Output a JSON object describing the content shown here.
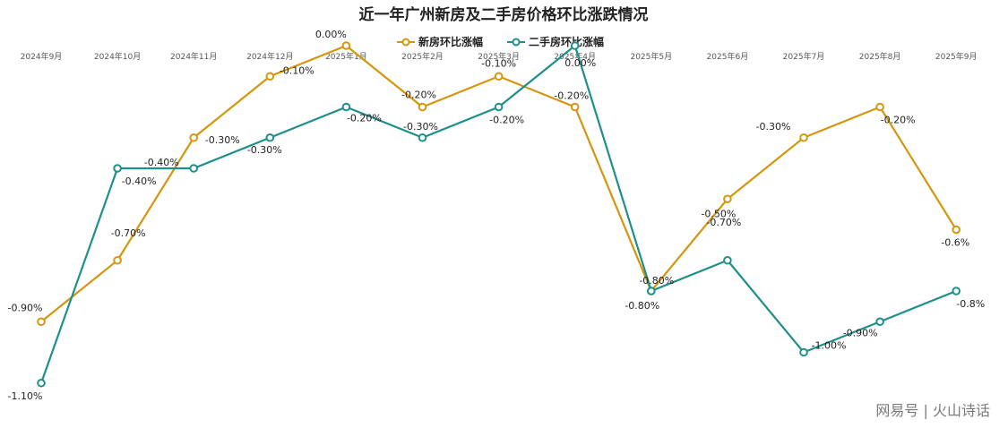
{
  "chart_data": {
    "type": "line",
    "title": "近一年广州新房及二手房价格环比涨跌情况",
    "categories": [
      "2024年9月",
      "2024年10月",
      "2024年11月",
      "2024年12月",
      "2025年1月",
      "2025年2月",
      "2025年3月",
      "2025年4月",
      "2025年5月",
      "2025年6月",
      "2025年7月",
      "2025年8月",
      "2025年9月"
    ],
    "legend_position": "top-center",
    "grid": false,
    "series": [
      {
        "name": "新房环比涨幅",
        "color": "#d4960e",
        "values": [
          -0.9,
          -0.7,
          -0.3,
          -0.1,
          0.0,
          -0.2,
          -0.1,
          -0.2,
          -0.8,
          -0.5,
          -0.3,
          -0.2,
          -0.6
        ],
        "labels": [
          "-0.90%",
          "-0.70%",
          "-0.30%",
          "-0.10%",
          "0.00%",
          "-0.20%",
          "-0.10%",
          "-0.20%",
          "-0.80%",
          "-0.50%",
          "-0.30%",
          "-0.20%",
          "-0.6%"
        ]
      },
      {
        "name": "二手房环比涨幅",
        "color": "#1e8f8a",
        "values": [
          -1.1,
          -0.4,
          -0.4,
          -0.3,
          -0.2,
          -0.3,
          -0.2,
          0.0,
          -0.8,
          -0.7,
          -1.0,
          -0.9,
          -0.8
        ],
        "labels": [
          "-1.10%",
          "-0.40%",
          "-0.40%",
          "-0.30%",
          "-0.20%",
          "-0.30%",
          "-0.20%",
          "0.00%",
          "-0.80%",
          "-0.70%",
          "-1.00%",
          "-0.90%",
          "-0.8%"
        ]
      }
    ]
  },
  "watermark": "网易号 | 火山诗话"
}
